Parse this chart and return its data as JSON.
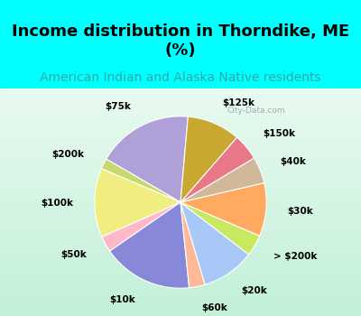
{
  "title": "Income distribution in Thorndike, ME\n(%)",
  "subtitle": "American Indian and Alaska Native residents",
  "title_fontsize": 13,
  "subtitle_fontsize": 10,
  "labels": [
    "$75k",
    "$200k",
    "$100k",
    "$50k",
    "$10k",
    "$60k",
    "$20k",
    "> $200k",
    "$30k",
    "$40k",
    "$150k",
    "$125k"
  ],
  "values": [
    18,
    2,
    13,
    3,
    17,
    3,
    10,
    4,
    10,
    5,
    5,
    10
  ],
  "colors": [
    "#b0a0d8",
    "#c8d870",
    "#f0ee80",
    "#ffb8c8",
    "#8888d8",
    "#ffb898",
    "#a8c8f8",
    "#c8e860",
    "#ffaa60",
    "#d0b898",
    "#e87888",
    "#c8a830"
  ],
  "label_fontsize": 7.5,
  "startangle": 85,
  "watermark": "City-Data.com",
  "cyan_color": "#00FFFF",
  "chart_bg_top": "#e8f8f0",
  "chart_bg_bottom": "#c8f0d8"
}
